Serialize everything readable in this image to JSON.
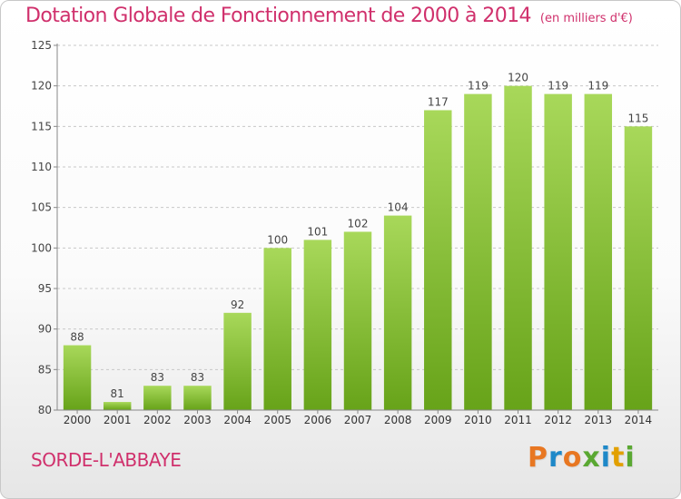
{
  "header": {
    "title": "Dotation Globale de Fonctionnement de 2000 à 2014",
    "subtitle": "(en milliers d'€)"
  },
  "footer": {
    "commune": "SORDE-L'ABBAYE",
    "logo": "Proxiti",
    "logo_colors": [
      "#e87722",
      "#1e88c8",
      "#e87722",
      "#5aa832",
      "#1e88c8",
      "#e2a000",
      "#5aa832"
    ]
  },
  "colors": {
    "bar_light": "#a8d85a",
    "bar_dark": "#67a319",
    "title": "#d0306c",
    "grid": "#c8c8c8"
  },
  "chart_data": {
    "type": "bar",
    "categories": [
      "2000",
      "2001",
      "2002",
      "2003",
      "2004",
      "2005",
      "2006",
      "2007",
      "2008",
      "2009",
      "2010",
      "2011",
      "2012",
      "2013",
      "2014"
    ],
    "values": [
      88,
      81,
      83,
      83,
      92,
      100,
      101,
      102,
      104,
      117,
      119,
      120,
      119,
      119,
      115
    ],
    "data_labels": [
      "88",
      "81",
      "83",
      "83",
      "92",
      "100",
      "101",
      "102",
      "104",
      "117",
      "119",
      "120",
      "119",
      "119",
      "115"
    ],
    "yticks": [
      "80",
      "85",
      "90",
      "95",
      "100",
      "105",
      "110",
      "115",
      "120",
      "125"
    ],
    "ylim": [
      80,
      125
    ],
    "title": "Dotation Globale de Fonctionnement de 2000 à 2014",
    "subtitle": "(en milliers d'€)",
    "xlabel": "",
    "ylabel": "",
    "grid": true,
    "legend": "none"
  }
}
